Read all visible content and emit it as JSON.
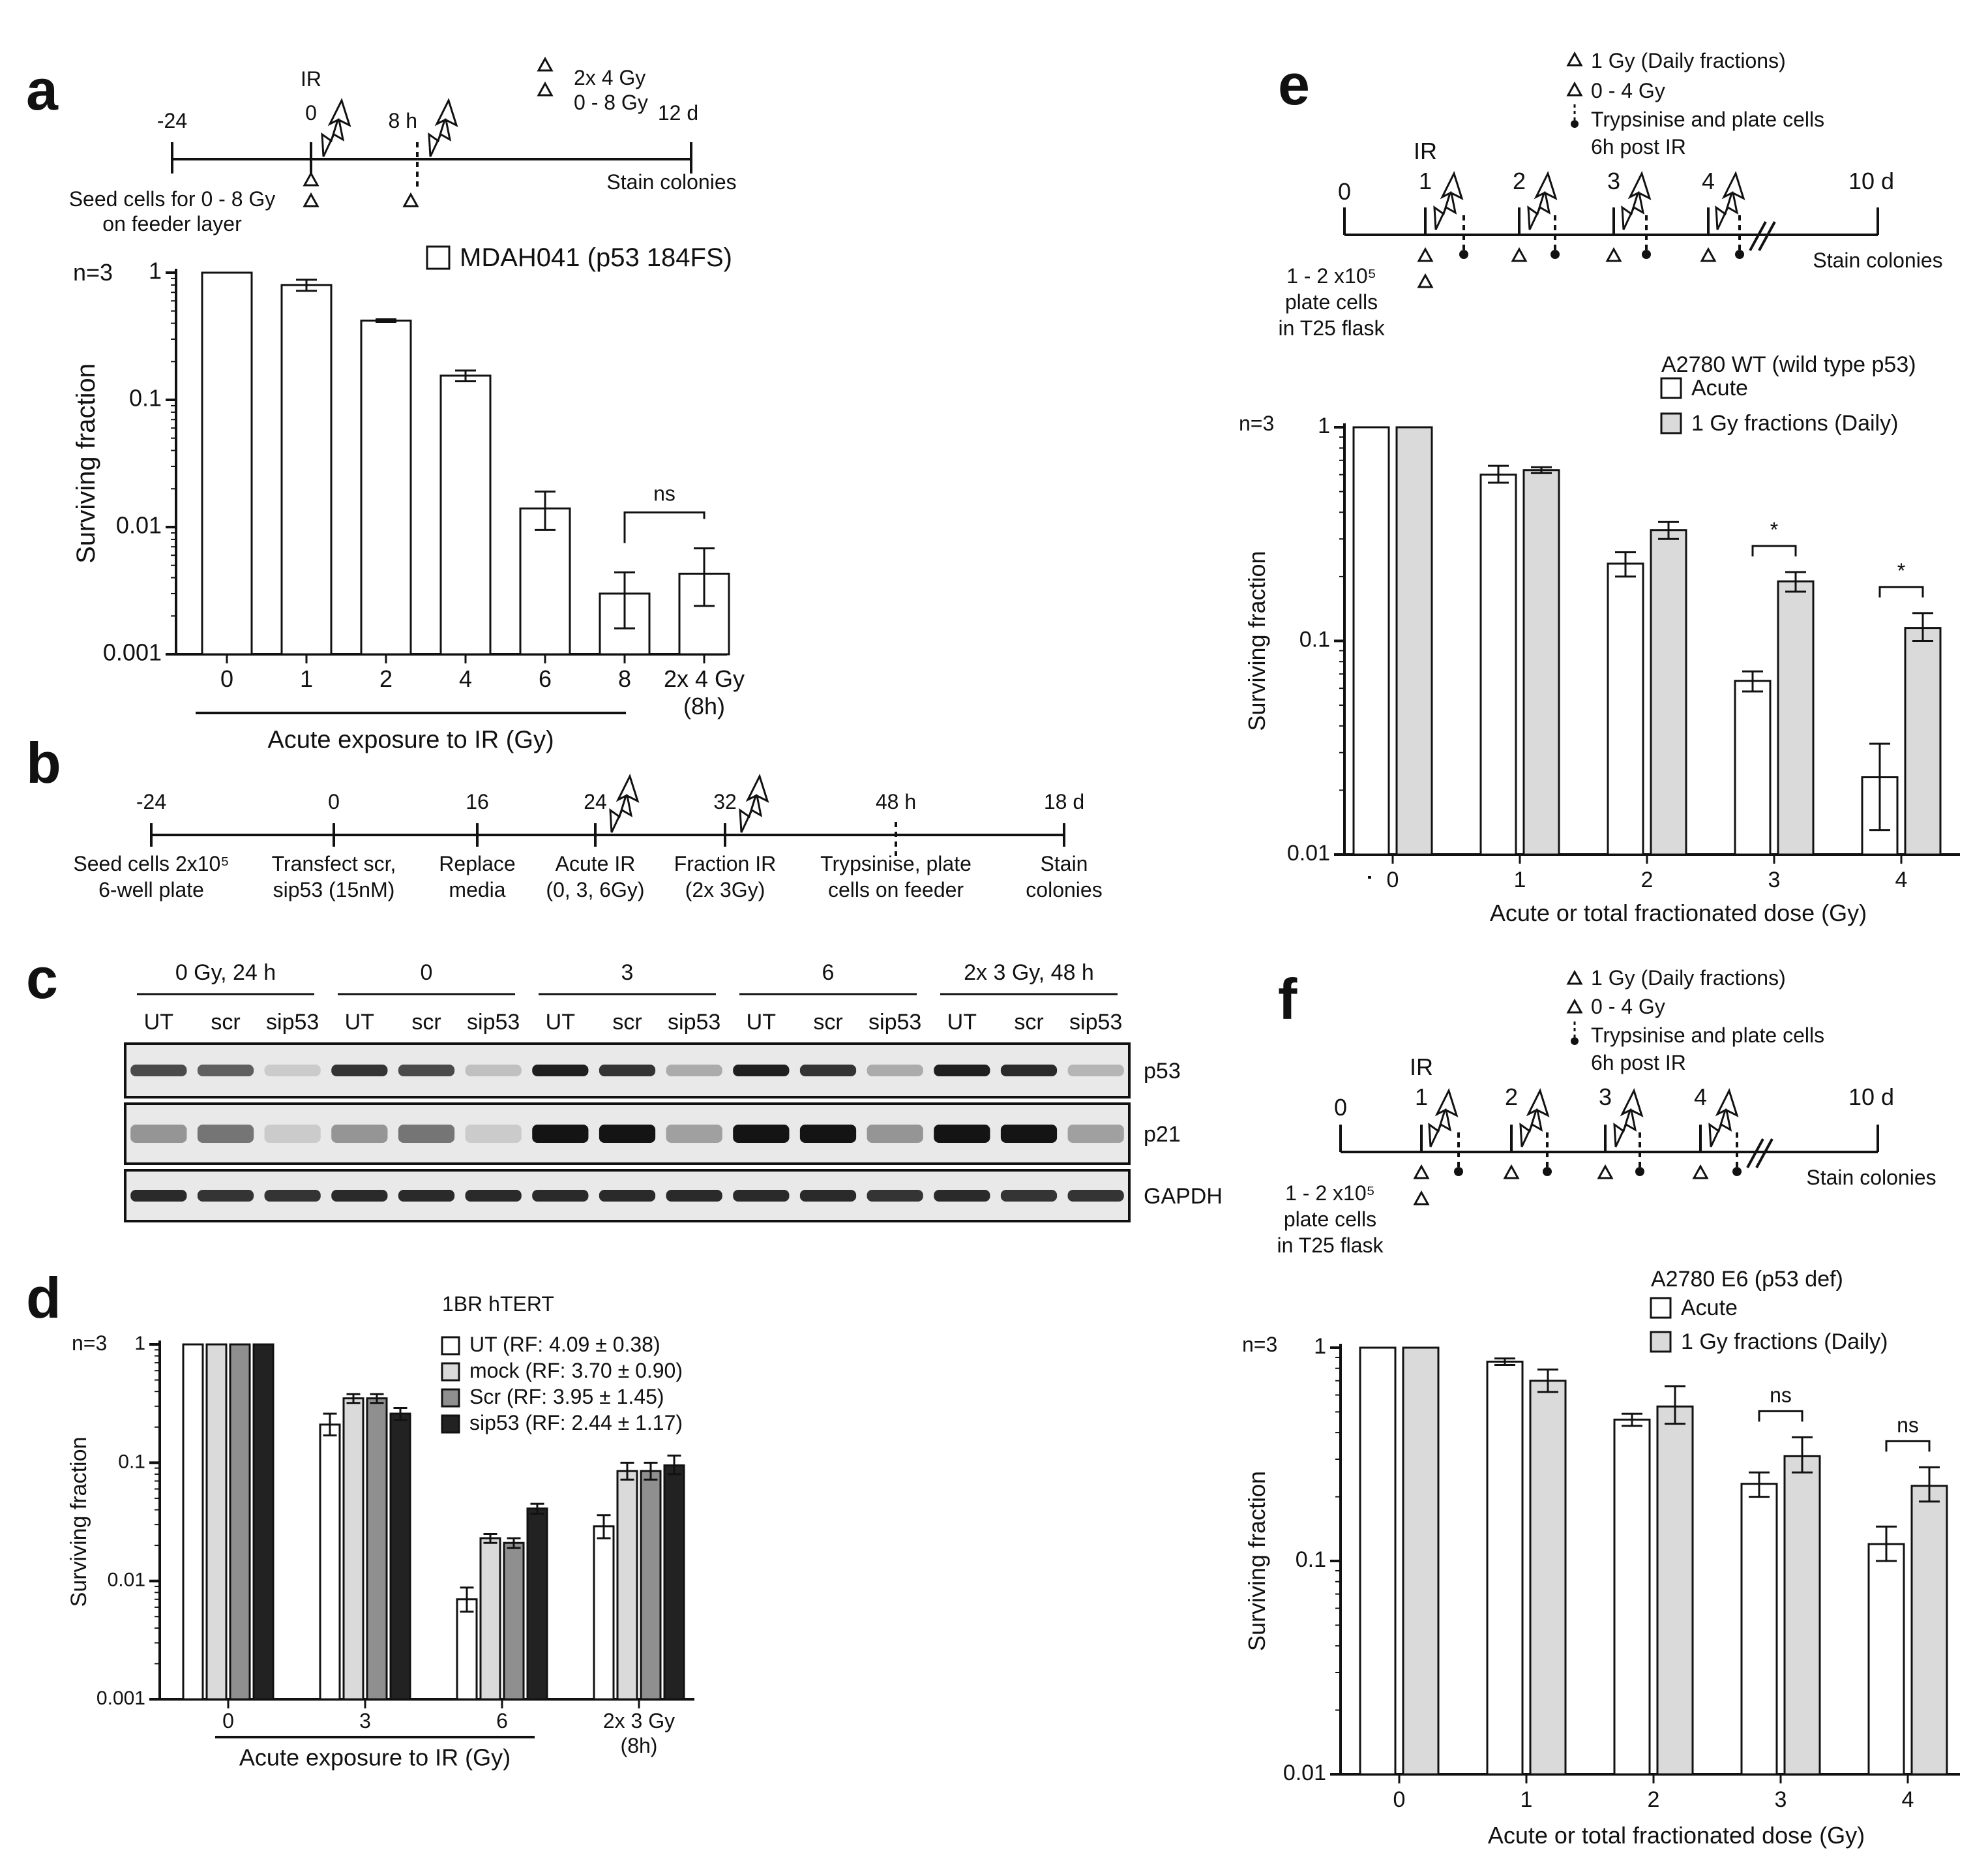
{
  "colors": {
    "ink": "#111111",
    "white_bar": "#ffffff",
    "light_gray_bar": "#dadada",
    "mid_gray_bar": "#8f8f8f",
    "dark_bar": "#222222",
    "blot_bg": "#e9e9e9"
  },
  "panels": {
    "a": {
      "letter": "a",
      "timeline": {
        "ticks": [
          "-24",
          "0",
          "8 h",
          "12 d"
        ],
        "ir_label": "IR",
        "seed_line1": "Seed cells for 0 - 8 Gy",
        "seed_line2": "on feeder layer",
        "stain": "Stain colonies",
        "legend1": "2x 4 Gy",
        "legend2": "0 - 8 Gy"
      },
      "n_label": "n=3",
      "group_label": "Acute exposure to IR (Gy)",
      "sig_label": "ns"
    },
    "b": {
      "letter": "b",
      "timeline": {
        "ticks": [
          "-24",
          "0",
          "16",
          "24",
          "32",
          "48 h",
          "18 d"
        ],
        "steps": [
          {
            "l1": "Seed cells 2x10⁵",
            "l2": "6-well plate"
          },
          {
            "l1": "Transfect scr,",
            "l2": "sip53 (15nM)"
          },
          {
            "l1": "Replace",
            "l2": "media"
          },
          {
            "l1": "Acute IR",
            "l2": "(0, 3, 6Gy)"
          },
          {
            "l1": "Fraction IR",
            "l2": "(2x 3Gy)"
          },
          {
            "l1": "Trypsinise, plate",
            "l2": "cells on feeder"
          },
          {
            "l1": "Stain",
            "l2": "colonies"
          }
        ]
      }
    },
    "c": {
      "letter": "c",
      "groups": [
        "0 Gy, 24 h",
        "0",
        "3",
        "6",
        "2x 3 Gy, 48 h"
      ],
      "lanes": [
        "UT",
        "scr",
        "sip53",
        "UT",
        "scr",
        "sip53",
        "UT",
        "scr",
        "sip53",
        "UT",
        "scr",
        "sip53",
        "UT",
        "scr",
        "sip53"
      ],
      "blots": [
        "p53",
        "p21",
        "GAPDH"
      ],
      "intensities": {
        "p53": [
          0.75,
          0.65,
          0.15,
          0.85,
          0.75,
          0.2,
          0.95,
          0.85,
          0.3,
          0.95,
          0.85,
          0.3,
          0.95,
          0.9,
          0.25
        ],
        "p21": [
          0.4,
          0.55,
          0.15,
          0.4,
          0.55,
          0.15,
          1.0,
          1.0,
          0.35,
          1.0,
          1.0,
          0.4,
          1.0,
          1.0,
          0.35
        ],
        "GAPDH": [
          0.9,
          0.85,
          0.85,
          0.9,
          0.9,
          0.9,
          0.9,
          0.9,
          0.9,
          0.9,
          0.9,
          0.85,
          0.9,
          0.85,
          0.85
        ]
      }
    },
    "d": {
      "letter": "d",
      "n_label": "n=3",
      "group_label": "Acute exposure to IR (Gy)"
    },
    "e": {
      "letter": "e",
      "timeline": {
        "ticks": [
          "0",
          "1",
          "2",
          "3",
          "4",
          "10 d"
        ],
        "ir_label": "IR",
        "plate_l1": "1 - 2 x10⁵",
        "plate_l2": "plate cells",
        "plate_l3": "in T25 flask",
        "stain": "Stain colonies",
        "legend1": "1 Gy (Daily fractions)",
        "legend2": "0 - 4 Gy",
        "legend3a": "Trypsinise and plate cells",
        "legend3b": "6h post IR"
      },
      "n_label": "n=3"
    },
    "f": {
      "letter": "f",
      "timeline": {
        "ticks": [
          "0",
          "1",
          "2",
          "3",
          "4",
          "10 d"
        ],
        "ir_label": "IR",
        "plate_l1": "1 - 2 x10⁵",
        "plate_l2": "plate cells",
        "plate_l3": "in T25 flask",
        "stain": "Stain colonies",
        "legend1": "1 Gy (Daily fractions)",
        "legend2": "0 - 4 Gy",
        "legend3a": "Trypsinise and plate cells",
        "legend3b": "6h post IR"
      },
      "n_label": "n=3"
    }
  },
  "chart_data": [
    {
      "id": "a",
      "type": "bar",
      "scale": "log",
      "title": "",
      "ylabel": "Surviving fraction",
      "xlabel": "Acute exposure to IR (Gy)",
      "ylim": [
        0.001,
        1
      ],
      "y_ticks": [
        "0.001",
        "0.01",
        "0.1",
        "1"
      ],
      "categories": [
        "0",
        "1",
        "2",
        "4",
        "6",
        "8",
        "2x 4 Gy\n(8h)"
      ],
      "series": [
        {
          "name": "MDAH041 (p53 184FS)",
          "color": "#ffffff",
          "values": [
            1.0,
            0.8,
            0.42,
            0.155,
            0.014,
            0.003,
            0.0043
          ],
          "err_low": [
            1.0,
            0.72,
            0.41,
            0.14,
            0.0095,
            0.0016,
            0.0024
          ],
          "err_high": [
            1.0,
            0.88,
            0.43,
            0.17,
            0.019,
            0.0044,
            0.0068
          ]
        }
      ],
      "annotations": [
        {
          "label": "ns",
          "from": 5,
          "to": 6
        }
      ]
    },
    {
      "id": "d",
      "type": "bar",
      "scale": "log",
      "title": "1BR hTERT",
      "ylabel": "Surviving fraction",
      "xlabel": "Acute exposure to IR (Gy)",
      "ylim": [
        0.001,
        1
      ],
      "y_ticks": [
        "0.001",
        "0.01",
        "0.1",
        "1"
      ],
      "categories": [
        "0",
        "3",
        "6",
        "2x 3 Gy\n(8h)"
      ],
      "series": [
        {
          "name": "UT (RF: 4.09 ± 0.38)",
          "color": "#ffffff",
          "values": [
            1.0,
            0.21,
            0.007,
            0.029
          ],
          "err_low": [
            1.0,
            0.17,
            0.0055,
            0.023
          ],
          "err_high": [
            1.0,
            0.26,
            0.0088,
            0.036
          ]
        },
        {
          "name": "mock (RF: 3.70 ±  0.90)",
          "color": "#dadada",
          "values": [
            1.0,
            0.35,
            0.023,
            0.085
          ],
          "err_low": [
            1.0,
            0.32,
            0.021,
            0.072
          ],
          "err_high": [
            1.0,
            0.38,
            0.025,
            0.1
          ]
        },
        {
          "name": "Scr (RF: 3.95 ± 1.45)",
          "color": "#8f8f8f",
          "values": [
            1.0,
            0.35,
            0.021,
            0.085
          ],
          "err_low": [
            1.0,
            0.32,
            0.019,
            0.072
          ],
          "err_high": [
            1.0,
            0.38,
            0.023,
            0.1
          ]
        },
        {
          "name": "sip53 (RF: 2.44 ± 1.17)",
          "color": "#222222",
          "values": [
            1.0,
            0.26,
            0.041,
            0.095
          ],
          "err_low": [
            1.0,
            0.23,
            0.037,
            0.08
          ],
          "err_high": [
            1.0,
            0.29,
            0.045,
            0.115
          ]
        }
      ]
    },
    {
      "id": "e",
      "type": "bar",
      "scale": "log",
      "title": "A2780 WT (wild type p53)",
      "ylabel": "Surviving fraction",
      "xlabel": "Acute or total fractionated dose (Gy)",
      "ylim": [
        0.01,
        1
      ],
      "y_ticks": [
        "0.01",
        "0.1",
        "1"
      ],
      "categories": [
        "0",
        "1",
        "2",
        "3",
        "4"
      ],
      "series": [
        {
          "name": "Acute",
          "color": "#ffffff",
          "values": [
            1.0,
            0.6,
            0.23,
            0.065,
            0.023
          ],
          "err_low": [
            1.0,
            0.55,
            0.2,
            0.058,
            0.013
          ],
          "err_high": [
            1.0,
            0.66,
            0.26,
            0.072,
            0.033
          ]
        },
        {
          "name": "1 Gy fractions (Daily)",
          "color": "#dadada",
          "values": [
            1.0,
            0.63,
            0.33,
            0.19,
            0.115
          ],
          "err_low": [
            1.0,
            0.61,
            0.3,
            0.17,
            0.1
          ],
          "err_high": [
            1.0,
            0.65,
            0.36,
            0.21,
            0.135
          ]
        }
      ],
      "annotations": [
        {
          "label": "*",
          "category": 3
        },
        {
          "label": "*",
          "category": 4
        }
      ]
    },
    {
      "id": "f",
      "type": "bar",
      "scale": "log",
      "title": "A2780 E6 (p53 def)",
      "ylabel": "Surviving fraction",
      "xlabel": "Acute or total fractionated dose (Gy)",
      "ylim": [
        0.01,
        1
      ],
      "y_ticks": [
        "0.01",
        "0.1",
        "1"
      ],
      "categories": [
        "0",
        "1",
        "2",
        "3",
        "4"
      ],
      "series": [
        {
          "name": "Acute",
          "color": "#ffffff",
          "values": [
            1.0,
            0.86,
            0.46,
            0.23,
            0.12
          ],
          "err_low": [
            1.0,
            0.83,
            0.43,
            0.2,
            0.1
          ],
          "err_high": [
            1.0,
            0.89,
            0.49,
            0.26,
            0.145
          ]
        },
        {
          "name": "1 Gy fractions (Daily)",
          "color": "#dadada",
          "values": [
            1.0,
            0.7,
            0.53,
            0.31,
            0.225
          ],
          "err_low": [
            1.0,
            0.62,
            0.44,
            0.26,
            0.19
          ],
          "err_high": [
            1.0,
            0.79,
            0.66,
            0.38,
            0.275
          ]
        }
      ],
      "annotations": [
        {
          "label": "ns",
          "category": 3
        },
        {
          "label": "ns",
          "category": 4
        }
      ]
    }
  ]
}
